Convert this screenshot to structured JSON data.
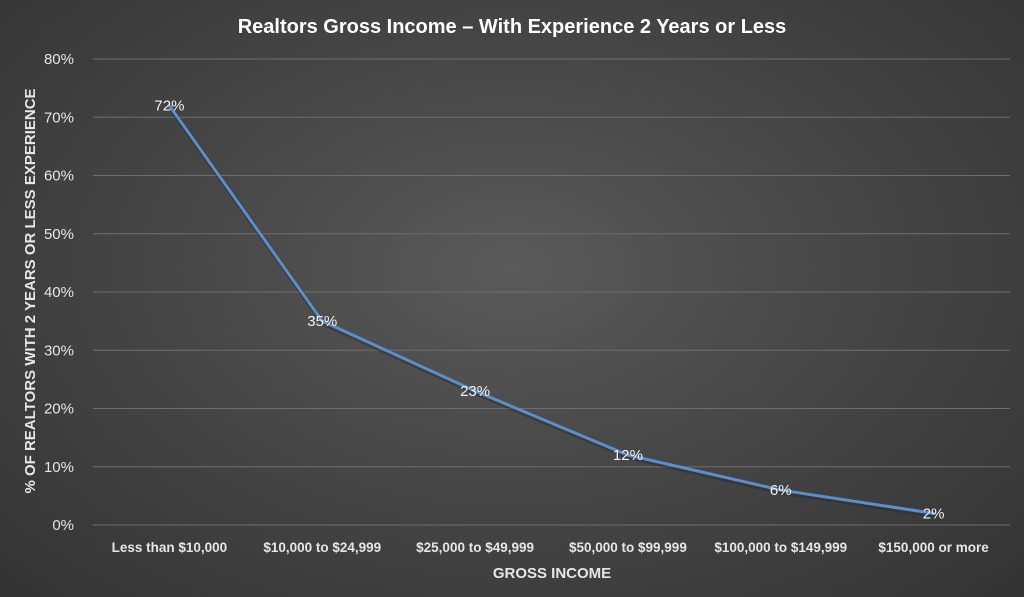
{
  "chart_data": {
    "type": "line",
    "title": "Realtors Gross Income – With Experience 2 Years or Less",
    "xlabel": "GROSS INCOME",
    "ylabel": "% OF REALTORS WITH 2 YEARS OR LESS EXPERIENCE",
    "categories": [
      "Less than $10,000",
      "$10,000 to $24,999",
      "$25,000 to $49,999",
      "$50,000 to $99,999",
      "$100,000 to $149,999",
      "$150,000 or more"
    ],
    "series": [
      {
        "values": [
          72,
          35,
          23,
          12,
          6,
          2
        ],
        "color": "#5b8fc9"
      }
    ],
    "data_labels": [
      "72%",
      "35%",
      "23%",
      "12%",
      "6%",
      "2%"
    ],
    "yticks": [
      "0%",
      "10%",
      "20%",
      "30%",
      "40%",
      "50%",
      "60%",
      "70%",
      "80%"
    ],
    "ylim": [
      0,
      80
    ],
    "grid": true,
    "legend": "none"
  }
}
